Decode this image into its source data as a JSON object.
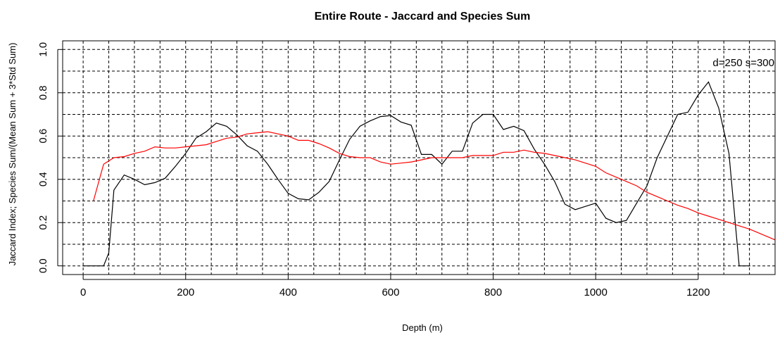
{
  "chart_data": {
    "type": "line",
    "title": "Entire Route - Jaccard and Species Sum",
    "xlabel": "Depth (m)",
    "ylabel": "Jaccard Index; Species Sum/(Mean Sum + 3*Std Sum)",
    "xlim": [
      -40,
      1350
    ],
    "ylim": [
      -0.04,
      1.04
    ],
    "xticks": [
      0,
      200,
      400,
      600,
      800,
      1000,
      1200
    ],
    "xtick_labels": [
      "0",
      "200",
      "400",
      "600",
      "800",
      "1000",
      "1200"
    ],
    "yticks": [
      0.0,
      0.2,
      0.4,
      0.6,
      0.8,
      1.0
    ],
    "ytick_labels": [
      "0.0",
      "0.2",
      "0.4",
      "0.6",
      "0.8",
      "1.0"
    ],
    "grid": true,
    "annotation": "d=250 s=300",
    "series": [
      {
        "color": "#000000",
        "x": [
          0,
          20,
          40,
          50,
          60,
          80,
          100,
          120,
          140,
          160,
          180,
          200,
          220,
          240,
          260,
          280,
          300,
          320,
          340,
          360,
          380,
          400,
          420,
          440,
          460,
          480,
          500,
          520,
          540,
          560,
          580,
          600,
          620,
          640,
          660,
          680,
          700,
          720,
          740,
          760,
          780,
          800,
          820,
          840,
          860,
          880,
          900,
          920,
          940,
          960,
          980,
          1000,
          1020,
          1040,
          1060,
          1080,
          1100,
          1120,
          1140,
          1160,
          1180,
          1200,
          1220,
          1240,
          1260,
          1280,
          1300
        ],
        "y": [
          0.0,
          0.0,
          0.0,
          0.06,
          0.35,
          0.42,
          0.4,
          0.375,
          0.385,
          0.405,
          0.46,
          0.52,
          0.59,
          0.62,
          0.66,
          0.645,
          0.605,
          0.555,
          0.53,
          0.47,
          0.4,
          0.335,
          0.31,
          0.305,
          0.34,
          0.39,
          0.49,
          0.585,
          0.645,
          0.67,
          0.69,
          0.695,
          0.665,
          0.65,
          0.515,
          0.515,
          0.47,
          0.53,
          0.53,
          0.66,
          0.7,
          0.7,
          0.63,
          0.645,
          0.625,
          0.54,
          0.47,
          0.39,
          0.285,
          0.26,
          0.275,
          0.29,
          0.22,
          0.2,
          0.21,
          0.29,
          0.37,
          0.5,
          0.6,
          0.7,
          0.71,
          0.79,
          0.85,
          0.73,
          0.52,
          0.0,
          0.0
        ]
      },
      {
        "color": "#ff0000",
        "x": [
          20,
          40,
          60,
          80,
          100,
          120,
          140,
          160,
          180,
          200,
          220,
          240,
          260,
          280,
          300,
          320,
          340,
          360,
          380,
          400,
          420,
          440,
          460,
          480,
          500,
          520,
          540,
          560,
          580,
          600,
          620,
          640,
          660,
          680,
          700,
          720,
          740,
          760,
          780,
          800,
          820,
          840,
          860,
          880,
          900,
          920,
          940,
          960,
          980,
          1000,
          1020,
          1040,
          1060,
          1080,
          1100,
          1120,
          1140,
          1160,
          1180,
          1200,
          1220,
          1240,
          1260,
          1280,
          1300,
          1320,
          1340,
          1350
        ],
        "y": [
          0.3,
          0.47,
          0.5,
          0.505,
          0.52,
          0.53,
          0.55,
          0.545,
          0.545,
          0.55,
          0.555,
          0.56,
          0.575,
          0.59,
          0.595,
          0.61,
          0.615,
          0.62,
          0.61,
          0.6,
          0.58,
          0.58,
          0.565,
          0.545,
          0.52,
          0.505,
          0.5,
          0.5,
          0.48,
          0.47,
          0.475,
          0.48,
          0.49,
          0.5,
          0.5,
          0.5,
          0.5,
          0.51,
          0.51,
          0.51,
          0.525,
          0.525,
          0.535,
          0.525,
          0.52,
          0.51,
          0.5,
          0.49,
          0.475,
          0.46,
          0.43,
          0.41,
          0.39,
          0.37,
          0.34,
          0.32,
          0.3,
          0.28,
          0.265,
          0.245,
          0.23,
          0.215,
          0.2,
          0.185,
          0.17,
          0.15,
          0.13,
          0.12
        ]
      }
    ]
  }
}
